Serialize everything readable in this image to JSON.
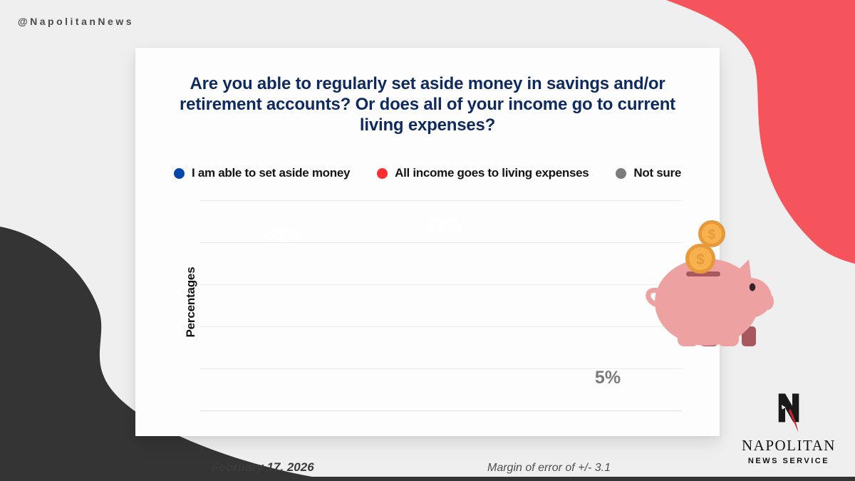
{
  "handle": "@NapolitanNews",
  "chart_data": {
    "type": "bar",
    "title": "Are you able to regularly set aside money in savings and/or retirement accounts? Or does all of your income go to current living expenses?",
    "categories": [
      "I am able to set aside money",
      "All income goes to living expenses",
      "Not sure"
    ],
    "values": [
      46,
      48,
      5
    ],
    "value_labels": [
      "46%",
      "48%",
      "5%"
    ],
    "colors": [
      "#0647ac",
      "#fd2e2e",
      "#7b7b7b"
    ],
    "ylabel": "Percentages",
    "ylim": [
      0,
      50
    ],
    "gridline_step": 10,
    "grid": true,
    "legend_position": "top"
  },
  "footer": {
    "date": "February 17, 2026",
    "margin_of_error": "Margin of error of +/- 3.1"
  },
  "logo": {
    "name": "NAPOLITAN",
    "tagline": "NEWS SERVICE"
  },
  "icons": {
    "coin_symbol": "$",
    "piggy_bank": "piggy-bank-illustration",
    "coin": "dollar-coin",
    "logo_mark": "napolitan-n-eagle"
  },
  "theme": {
    "background": "#efeff0",
    "card_background": "#fdfdfd",
    "title_color": "#0f2a5e",
    "red_blob": "#f5545c",
    "dark_blob": "#343434",
    "pig_pink": "#eda1a1",
    "coin_gold": "#f7b14d"
  }
}
